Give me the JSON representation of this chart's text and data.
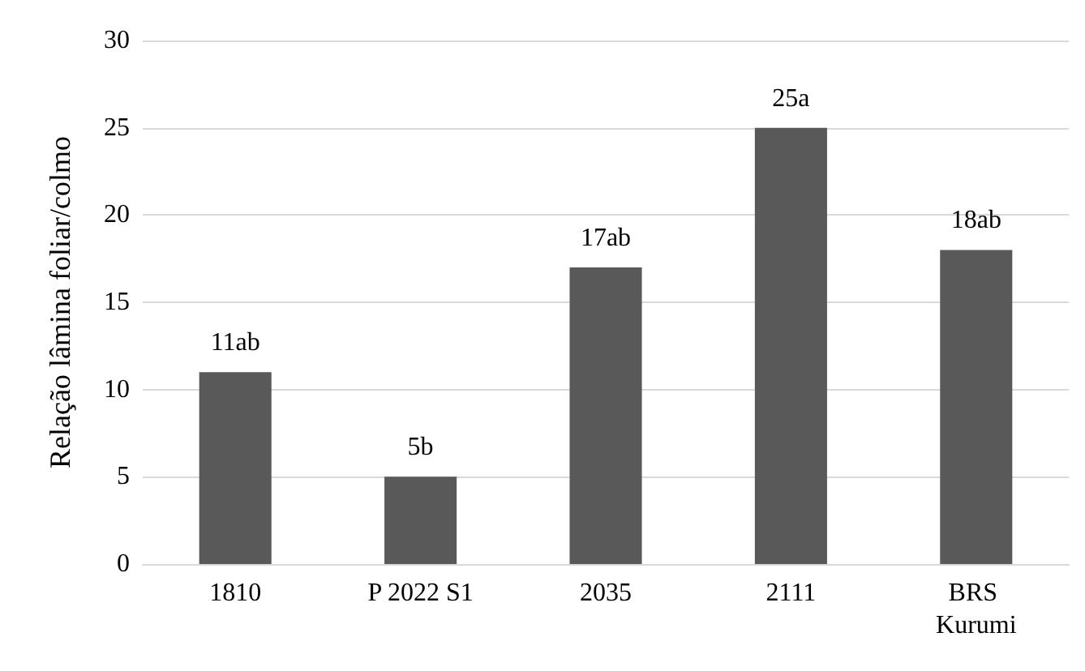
{
  "chart_data": {
    "type": "bar",
    "ylabel": "Relação lâmina foliar/colmo",
    "categories": [
      "1810",
      "P 2022 S1",
      "2035",
      "2111",
      "BRS Kurumi"
    ],
    "values": [
      11,
      5,
      17,
      25,
      18
    ],
    "value_labels": [
      "11ab",
      "5b",
      "17ab",
      "25a",
      "18ab"
    ],
    "color": "#595959",
    "ylim": [
      0,
      30
    ],
    "yticks": [
      0,
      5,
      10,
      15,
      20,
      25,
      30
    ],
    "grid": "y"
  }
}
